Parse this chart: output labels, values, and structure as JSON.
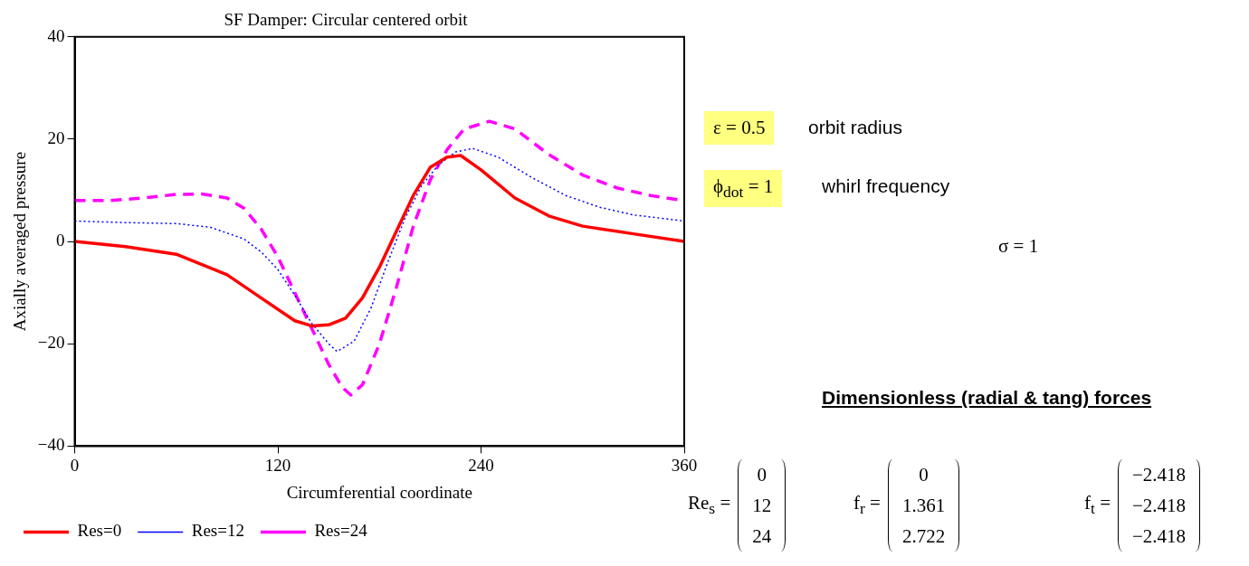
{
  "chart_data": {
    "type": "line",
    "title": "SF Damper: Circular centered orbit",
    "xlabel": "Circumferential coordinate",
    "ylabel": "Axially averaged pressure",
    "xlim": [
      0,
      360
    ],
    "xticks": [
      0,
      120,
      240,
      360
    ],
    "ylim": [
      -40,
      40
    ],
    "yticks": [
      -40,
      -20,
      0,
      20,
      40
    ],
    "grid": false,
    "legend": "bottom",
    "marker": "none",
    "series": [
      {
        "name": "Res=0",
        "color": "#ff0000",
        "line_style": "solid",
        "x": [
          0,
          30,
          60,
          90,
          110,
          130,
          140,
          150,
          160,
          170,
          180,
          190,
          200,
          210,
          220,
          228,
          240,
          260,
          280,
          300,
          330,
          360
        ],
        "values": [
          0,
          -1,
          -2.5,
          -6.5,
          -11,
          -15.5,
          -16.5,
          -16.3,
          -15,
          -11,
          -5,
          2,
          9,
          14.5,
          16.5,
          16.8,
          14,
          8.5,
          5,
          3,
          1.5,
          0
        ]
      },
      {
        "name": "Res=12",
        "color": "#0000ff",
        "line_style": "dotted",
        "x": [
          0,
          30,
          60,
          80,
          100,
          110,
          120,
          130,
          140,
          150,
          155,
          165,
          175,
          185,
          195,
          205,
          215,
          225,
          235,
          250,
          270,
          290,
          310,
          330,
          360
        ],
        "values": [
          4,
          3.7,
          3.5,
          2.8,
          0.5,
          -2,
          -5.5,
          -10.5,
          -16,
          -20,
          -21.5,
          -19.5,
          -13,
          -4,
          4.5,
          11,
          15,
          17.5,
          18.2,
          16.5,
          12.5,
          9,
          6.7,
          5.2,
          4
        ]
      },
      {
        "name": "Res=24",
        "color": "#ff00ff",
        "line_style": "dashed",
        "x": [
          0,
          20,
          40,
          60,
          75,
          90,
          100,
          110,
          120,
          130,
          140,
          150,
          158,
          163,
          170,
          180,
          190,
          200,
          210,
          220,
          230,
          245,
          260,
          280,
          300,
          320,
          340,
          360
        ],
        "values": [
          8,
          8,
          8.5,
          9.2,
          9.3,
          8.5,
          6.5,
          2.5,
          -3,
          -10,
          -17,
          -24,
          -28.5,
          -30,
          -28,
          -20,
          -9,
          3,
          12,
          18,
          22,
          23.5,
          22,
          17,
          13,
          10.5,
          9,
          8
        ]
      }
    ],
    "annotations": [
      "ε = 0.5",
      "orbit radius",
      "ϕ$_{dot}$ = 1",
      "whirl frequency",
      "σ = 1",
      "Dimensionless (radial & tang) forces",
      "Re$_{s}$ =",
      "0",
      "12",
      "24",
      "f$_{r}$ =",
      "0",
      "1.361",
      "2.722",
      "f$_{t}$ =",
      "−2.418",
      "−2.418",
      "−2.418"
    ]
  }
}
